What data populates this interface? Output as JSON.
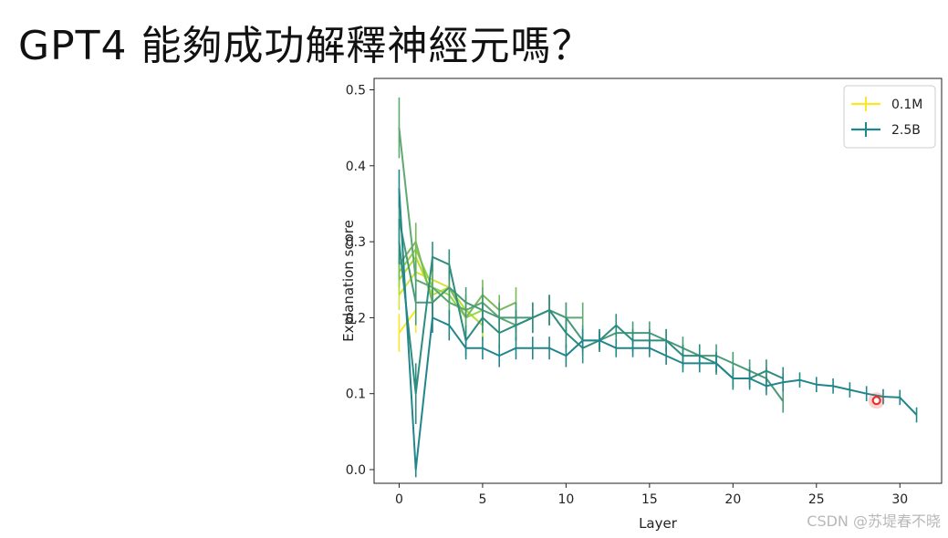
{
  "slide": {
    "title": "GPT4 能夠成功解釋神經元嗎？"
  },
  "watermark": "CSDN @苏堤春不晓",
  "chart_data": {
    "type": "line",
    "xlabel": "Layer",
    "ylabel": "Explanation score",
    "xlim": [
      -1.5,
      32.5
    ],
    "ylim": [
      -0.018,
      0.515
    ],
    "xticks": [
      0,
      5,
      10,
      15,
      20,
      25,
      30
    ],
    "yticks": [
      0.0,
      0.1,
      0.2,
      0.3,
      0.4,
      0.5
    ],
    "legend_position": "top-right",
    "grid": false,
    "colors": {
      "series_0.1M": "#fde725",
      "series_2.5B": "#21868c",
      "cursor_marker": "#e8302a"
    },
    "legend": [
      {
        "label": "0.1M",
        "color": "#fde725"
      },
      {
        "label": "2.5B",
        "color": "#21868c"
      }
    ],
    "series": [
      {
        "name": "0.1M",
        "color": "#fde725",
        "x": [
          0,
          1
        ],
        "y": [
          0.18,
          0.21
        ],
        "err": [
          0.025,
          0.03
        ]
      },
      {
        "color": "#d6e23a",
        "x": [
          0,
          1,
          2,
          3
        ],
        "y": [
          0.23,
          0.26,
          0.25,
          0.24
        ],
        "err": [
          0.02,
          0.025,
          0.02,
          0.02
        ]
      },
      {
        "color": "#b5de2b",
        "x": [
          0,
          1,
          2,
          3,
          4,
          5
        ],
        "y": [
          0.25,
          0.28,
          0.23,
          0.24,
          0.21,
          0.19
        ],
        "err": [
          0.02,
          0.025,
          0.02,
          0.02,
          0.02,
          0.02
        ]
      },
      {
        "color": "#90d743",
        "x": [
          0,
          1,
          2,
          3,
          4,
          5
        ],
        "y": [
          0.26,
          0.29,
          0.24,
          0.23,
          0.2,
          0.21
        ],
        "err": [
          0.02,
          0.025,
          0.02,
          0.02,
          0.02,
          0.02
        ]
      },
      {
        "color": "#7ab85c",
        "x": [
          0,
          1,
          2,
          3,
          4,
          5,
          6,
          7
        ],
        "y": [
          0.27,
          0.3,
          0.22,
          0.24,
          0.2,
          0.23,
          0.21,
          0.22
        ],
        "err": [
          0.02,
          0.025,
          0.02,
          0.02,
          0.02,
          0.02,
          0.02,
          0.02
        ]
      },
      {
        "color": "#5fa871",
        "x": [
          0,
          1,
          2,
          3,
          4,
          5,
          6,
          7,
          8,
          9,
          10,
          11
        ],
        "y": [
          0.45,
          0.25,
          0.24,
          0.22,
          0.21,
          0.22,
          0.2,
          0.19,
          0.2,
          0.21,
          0.2,
          0.2
        ],
        "err": [
          0.04,
          0.025,
          0.02,
          0.02,
          0.02,
          0.02,
          0.02,
          0.02,
          0.02,
          0.02,
          0.02,
          0.02
        ]
      },
      {
        "color": "#489a78",
        "x": [
          0,
          1,
          2,
          3,
          4,
          5,
          6,
          7,
          8,
          9,
          10,
          11,
          12,
          13,
          14,
          15,
          16,
          17,
          18,
          19,
          20,
          21,
          22,
          23
        ],
        "y": [
          0.33,
          0.22,
          0.22,
          0.24,
          0.22,
          0.21,
          0.2,
          0.2,
          0.2,
          0.21,
          0.2,
          0.17,
          0.17,
          0.18,
          0.18,
          0.18,
          0.17,
          0.16,
          0.15,
          0.15,
          0.14,
          0.13,
          0.12,
          0.09
        ],
        "err": [
          0.03,
          0.03,
          0.02,
          0.02,
          0.02,
          0.02,
          0.02,
          0.02,
          0.02,
          0.02,
          0.02,
          0.02,
          0.015,
          0.015,
          0.015,
          0.015,
          0.015,
          0.015,
          0.015,
          0.015,
          0.015,
          0.015,
          0.015,
          0.015
        ]
      },
      {
        "color": "#2f8d7f",
        "x": [
          0,
          1,
          2,
          3,
          4,
          5,
          6,
          7,
          8,
          9,
          10,
          11,
          12,
          13,
          14,
          15,
          16,
          17,
          18,
          19,
          20,
          21,
          22,
          23
        ],
        "y": [
          0.3,
          0.1,
          0.28,
          0.27,
          0.17,
          0.2,
          0.18,
          0.19,
          0.2,
          0.21,
          0.18,
          0.16,
          0.17,
          0.19,
          0.17,
          0.17,
          0.17,
          0.15,
          0.15,
          0.14,
          0.12,
          0.12,
          0.13,
          0.12
        ],
        "err": [
          0.03,
          0.04,
          0.02,
          0.02,
          0.02,
          0.02,
          0.02,
          0.02,
          0.02,
          0.02,
          0.02,
          0.02,
          0.015,
          0.015,
          0.015,
          0.015,
          0.015,
          0.015,
          0.015,
          0.015,
          0.015,
          0.015,
          0.015,
          0.015
        ]
      },
      {
        "name": "2.5B",
        "color": "#21868c",
        "x": [
          0,
          1,
          2,
          3,
          4,
          5,
          6,
          7,
          8,
          9,
          10,
          11,
          12,
          13,
          14,
          15,
          16,
          17,
          18,
          19,
          20,
          21,
          22,
          23,
          24,
          25,
          26,
          27,
          28,
          29,
          30,
          31
        ],
        "y": [
          0.37,
          0.0,
          0.2,
          0.19,
          0.16,
          0.16,
          0.15,
          0.16,
          0.16,
          0.16,
          0.15,
          0.17,
          0.17,
          0.16,
          0.16,
          0.16,
          0.15,
          0.14,
          0.14,
          0.14,
          0.12,
          0.12,
          0.11,
          0.115,
          0.118,
          0.112,
          0.11,
          0.105,
          0.1,
          0.096,
          0.095,
          0.072
        ],
        "err": [
          0.025,
          0.01,
          0.02,
          0.02,
          0.015,
          0.015,
          0.015,
          0.015,
          0.015,
          0.015,
          0.015,
          0.015,
          0.012,
          0.012,
          0.012,
          0.012,
          0.012,
          0.012,
          0.012,
          0.012,
          0.012,
          0.012,
          0.012,
          0.012,
          0.01,
          0.01,
          0.01,
          0.01,
          0.01,
          0.01,
          0.01,
          0.01
        ]
      }
    ],
    "annotation": {
      "type": "cursor-marker",
      "x": 28.6,
      "y": 0.091
    }
  }
}
